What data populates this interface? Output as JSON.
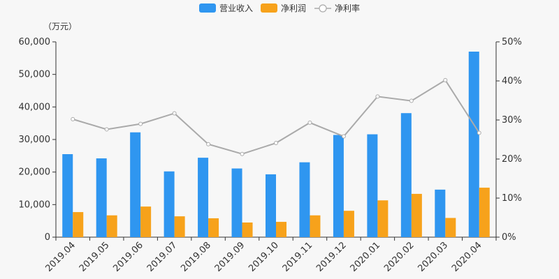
{
  "chart_data": {
    "type": "bar",
    "unit_label": "（万元）",
    "categories": [
      "2019.04",
      "2019.05",
      "2019.06",
      "2019.07",
      "2019.08",
      "2019.09",
      "2019.10",
      "2019.11",
      "2019.12",
      "2020.01",
      "2020.02",
      "2020.03",
      "2020.04"
    ],
    "series": [
      {
        "name": "营业收入",
        "type": "bar",
        "axis": "left",
        "color": "#2f96f0",
        "values": [
          25500,
          24200,
          32200,
          20200,
          24400,
          21100,
          19300,
          23000,
          31400,
          31600,
          38100,
          14600,
          57000
        ]
      },
      {
        "name": "净利润",
        "type": "bar",
        "axis": "left",
        "color": "#f7a21b",
        "values": [
          7700,
          6700,
          9400,
          6400,
          5800,
          4500,
          4700,
          6700,
          8100,
          11300,
          13300,
          5900,
          15200
        ]
      },
      {
        "name": "净利率",
        "type": "line",
        "axis": "right",
        "color": "#aaaaaa",
        "unit": "%",
        "values": [
          30.2,
          27.6,
          29.0,
          31.7,
          23.8,
          21.3,
          24.1,
          29.3,
          25.8,
          36.0,
          34.9,
          40.2,
          26.7
        ]
      }
    ],
    "y_left": {
      "ylim": [
        0,
        60000
      ],
      "ticks": [
        0,
        10000,
        20000,
        30000,
        40000,
        50000,
        60000
      ],
      "tick_labels": [
        "0",
        "10,000",
        "20,000",
        "30,000",
        "40,000",
        "50,000",
        "60,000"
      ]
    },
    "y_right": {
      "ylim": [
        0,
        50
      ],
      "ticks": [
        0,
        10,
        20,
        30,
        40,
        50
      ],
      "tick_labels": [
        "0%",
        "10%",
        "20%",
        "30%",
        "40%",
        "50%"
      ]
    },
    "grid": false,
    "legend_position": "top-center"
  }
}
